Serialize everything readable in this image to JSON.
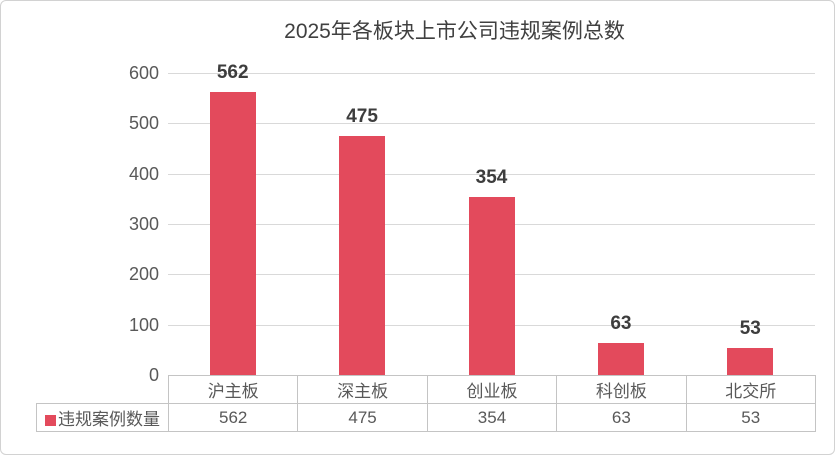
{
  "chart_data": {
    "type": "bar",
    "title": "2025年各板块上市公司违规案例总数",
    "categories": [
      "沪主板",
      "深主板",
      "创业板",
      "科创板",
      "北交所"
    ],
    "series": [
      {
        "name": "违规案例数量",
        "color": "#e34a5c",
        "values": [
          562,
          475,
          354,
          63,
          53
        ]
      }
    ],
    "xlabel": "",
    "ylabel": "",
    "ylim": [
      0,
      600
    ],
    "yticks": [
      0,
      100,
      200,
      300,
      400,
      500,
      600
    ],
    "grid": true,
    "value_labels_shown": true,
    "legend_position": "data-table-row",
    "data_table_shown": true
  },
  "colors": {
    "bar_fill": "#e34a5c",
    "title_text": "#404040",
    "axis_tick_text": "#595959",
    "category_text": "#595959",
    "table_value_text": "#595959",
    "value_label_text": "#3d3d3d",
    "gridline": "#d9d9d9",
    "table_border": "#c4c4c4",
    "frame_border": "#d2d2d2",
    "background": "#ffffff"
  }
}
